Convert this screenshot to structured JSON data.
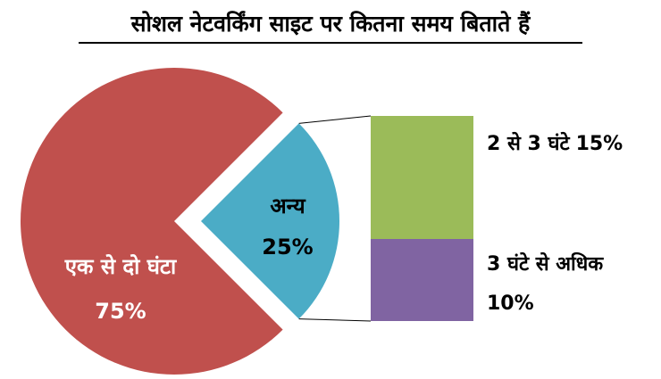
{
  "chart_data": {
    "type": "pie-of-bar",
    "title": "सोशल नेटवर्किंग साइट पर कितना समय बिताते हैं",
    "categories": [
      "एक से दो घंटा",
      "अन्य"
    ],
    "values": [
      75,
      25
    ],
    "value_labels": [
      "75%",
      "25%"
    ],
    "colors": [
      "#c0504d",
      "#4bacc6"
    ],
    "breakdown": {
      "categories": [
        "2 से 3 घंटे",
        "3 घंटे से अधिक"
      ],
      "values": [
        15,
        10
      ],
      "value_labels": [
        "15%",
        "10%"
      ],
      "colors": [
        "#9bbb59",
        "#8064a2"
      ]
    }
  }
}
